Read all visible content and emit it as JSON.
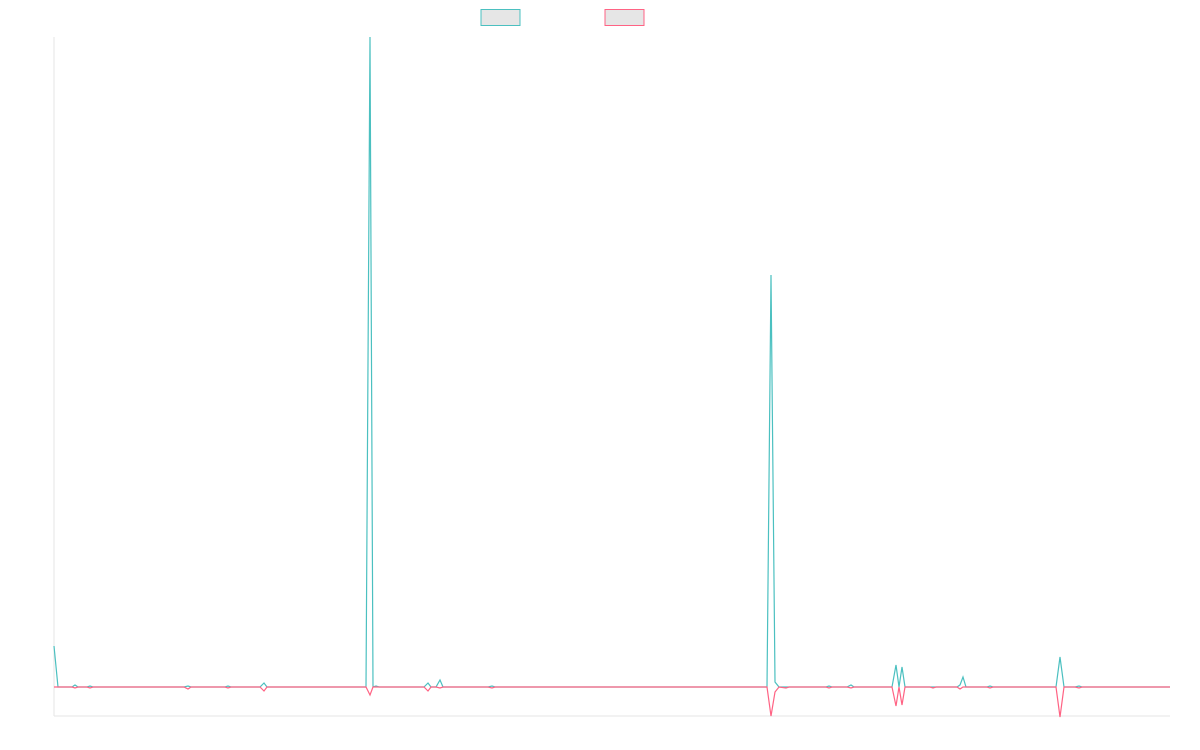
{
  "chart_data": {
    "type": "line",
    "x": [
      0,
      4,
      18,
      21,
      24,
      33,
      36,
      39,
      130,
      134,
      137,
      171,
      174,
      177,
      206,
      210,
      213,
      312,
      316,
      319,
      322,
      325,
      370,
      374,
      377,
      382,
      386,
      389,
      434,
      438,
      441,
      713,
      717,
      721,
      725,
      732,
      735,
      772,
      775,
      778,
      793,
      797,
      800,
      838,
      842,
      845,
      848,
      851,
      876,
      879,
      882,
      903,
      906,
      909,
      912,
      933,
      936,
      939,
      1002,
      1006,
      1010,
      1021,
      1025,
      1028,
      1116
    ],
    "series": [
      {
        "color": "#4bc0c0",
        "values": [
          41,
          0,
          0,
          2,
          0,
          0,
          1,
          0,
          0,
          1,
          0,
          0,
          1,
          0,
          0,
          4,
          0,
          0,
          650,
          0,
          1,
          0,
          0,
          4,
          0,
          0,
          7,
          0,
          0,
          1,
          0,
          0,
          412,
          5,
          0,
          0,
          0,
          0,
          1,
          0,
          0,
          2,
          0,
          0,
          22,
          0,
          20,
          0,
          0,
          0,
          0,
          0,
          2,
          10,
          0,
          0,
          1,
          0,
          0,
          30,
          0,
          0,
          1,
          0,
          0
        ]
      },
      {
        "color": "#ff6384",
        "values": [
          0,
          0,
          0,
          -1,
          0,
          0,
          -1,
          0,
          0,
          -2,
          0,
          0,
          -1,
          0,
          0,
          -4,
          0,
          0,
          -8,
          0,
          0,
          0,
          0,
          -4,
          0,
          0,
          -1,
          0,
          0,
          -1,
          0,
          0,
          -29,
          -5,
          0,
          -1,
          0,
          0,
          -1,
          0,
          0,
          -1,
          0,
          0,
          -19,
          0,
          -18,
          0,
          0,
          -1,
          0,
          0,
          -2,
          0,
          0,
          0,
          -1,
          0,
          0,
          -30,
          0,
          0,
          -1,
          0,
          0
        ]
      }
    ],
    "xlim": [
      0,
      1116
    ],
    "ylim": [
      -29,
      650
    ]
  }
}
